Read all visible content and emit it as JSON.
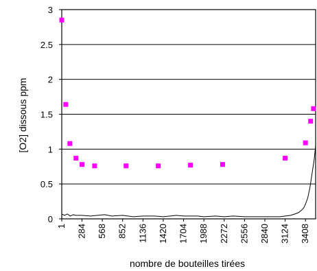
{
  "chart_data": {
    "type": "scatter",
    "xlabel": "nombre de bouteilles tirées",
    "ylabel": "[O2] dissous ppm",
    "xlim": [
      1,
      3550
    ],
    "ylim": [
      0,
      3
    ],
    "x_ticks": [
      "1",
      "284",
      "568",
      "852",
      "1136",
      "1420",
      "1704",
      "1988",
      "2272",
      "2556",
      "2840",
      "3124",
      "3408"
    ],
    "y_ticks": [
      "0",
      "0.5",
      "1",
      "1.5",
      "2",
      "2.5",
      "3"
    ],
    "grid": true,
    "grid_axis": "y",
    "legend": "none",
    "series": [
      {
        "kind": "markers",
        "color": "#ff00ff",
        "x": [
          1,
          57,
          114,
          200,
          284,
          460,
          900,
          1350,
          1800,
          2250,
          3124,
          3408,
          3480,
          3520
        ],
        "y": [
          2.85,
          1.64,
          1.08,
          0.87,
          0.78,
          0.76,
          0.76,
          0.76,
          0.77,
          0.78,
          0.87,
          1.09,
          1.4,
          1.58
        ]
      },
      {
        "kind": "line",
        "color": "#000000",
        "x": [
          1,
          40,
          80,
          120,
          160,
          200,
          284,
          400,
          500,
          600,
          700,
          852,
          1000,
          1136,
          1300,
          1420,
          1600,
          1704,
          1900,
          1988,
          2150,
          2272,
          2400,
          2556,
          2700,
          2840,
          2950,
          3050,
          3124,
          3200,
          3260,
          3310,
          3350,
          3385,
          3408,
          3440,
          3470,
          3500,
          3530,
          3550
        ],
        "y": [
          0.07,
          0.05,
          0.07,
          0.04,
          0.06,
          0.05,
          0.05,
          0.04,
          0.05,
          0.06,
          0.04,
          0.05,
          0.03,
          0.04,
          0.04,
          0.03,
          0.05,
          0.04,
          0.04,
          0.03,
          0.04,
          0.03,
          0.04,
          0.03,
          0.03,
          0.03,
          0.03,
          0.03,
          0.04,
          0.05,
          0.07,
          0.09,
          0.12,
          0.16,
          0.21,
          0.3,
          0.45,
          0.65,
          0.85,
          1.05
        ]
      }
    ]
  }
}
